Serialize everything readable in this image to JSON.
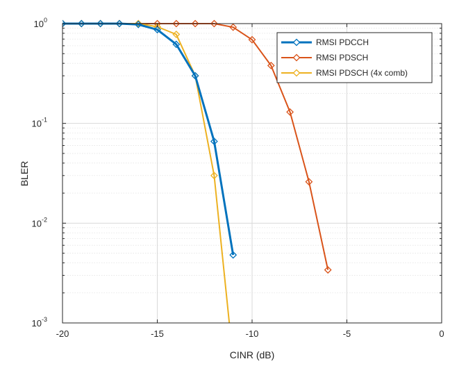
{
  "chart_data": {
    "type": "line",
    "xlabel": "CINR (dB)",
    "ylabel": "BLER",
    "xlim": [
      -20,
      0
    ],
    "ylim": [
      0.001,
      1
    ],
    "y_scale": "log",
    "grid": true,
    "minor_grid": true,
    "legend_position": "top-right",
    "x_ticks": [
      -20,
      -15,
      -10,
      -5,
      0
    ],
    "x_tick_labels": [
      "-20",
      "-15",
      "-10",
      "-5",
      "0"
    ],
    "y_ticks": [
      0.001,
      0.01,
      0.1,
      1
    ],
    "y_tick_labels": [
      {
        "base": "10",
        "exp": "-3"
      },
      {
        "base": "10",
        "exp": "-2"
      },
      {
        "base": "10",
        "exp": "-1"
      },
      {
        "base": "10",
        "exp": "0"
      }
    ],
    "series": [
      {
        "name": "RMSI PDCCH",
        "color": "#0072BD",
        "line_width": 3,
        "marker": "diamond",
        "x": [
          -20,
          -19,
          -18,
          -17,
          -16,
          -15,
          -14,
          -13,
          -12,
          -11
        ],
        "y": [
          1.0,
          1.0,
          1.0,
          1.0,
          0.98,
          0.87,
          0.62,
          0.3,
          0.066,
          0.0048
        ]
      },
      {
        "name": "RMSI PDSCH",
        "color": "#D95319",
        "line_width": 2,
        "marker": "diamond",
        "x": [
          -20,
          -19,
          -18,
          -17,
          -16,
          -15,
          -14,
          -13,
          -12,
          -11,
          -10,
          -9,
          -8,
          -7,
          -6
        ],
        "y": [
          1.0,
          1.0,
          1.0,
          1.0,
          1.0,
          1.0,
          1.0,
          1.0,
          1.0,
          0.92,
          0.69,
          0.38,
          0.13,
          0.026,
          0.0034
        ]
      },
      {
        "name": "RMSI PDSCH (4x comb)",
        "color": "#EDB120",
        "line_width": 2,
        "marker": "diamond",
        "x": [
          -20,
          -19,
          -18,
          -17,
          -16,
          -15,
          -14,
          -13,
          -12,
          -11.2
        ],
        "y": [
          1.0,
          1.0,
          1.0,
          1.0,
          1.0,
          0.93,
          0.78,
          0.3,
          0.03,
          0.001
        ],
        "marker_count": 9
      }
    ]
  }
}
